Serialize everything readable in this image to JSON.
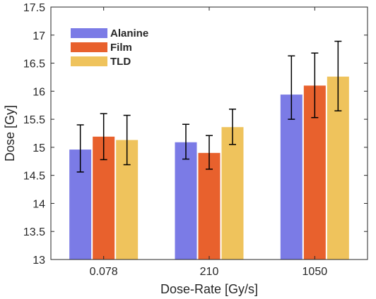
{
  "chart_data": {
    "type": "bar",
    "categories": [
      "0.078",
      "210",
      "1050"
    ],
    "series": [
      {
        "name": "Alanine",
        "color": "#7b7be6",
        "values": [
          14.96,
          15.09,
          15.94
        ],
        "err_low": [
          14.56,
          14.79,
          15.5
        ],
        "err_high": [
          15.4,
          15.41,
          16.63
        ]
      },
      {
        "name": "Film",
        "color": "#e8612d",
        "values": [
          15.19,
          14.9,
          16.1
        ],
        "err_low": [
          14.78,
          14.61,
          15.53
        ],
        "err_high": [
          15.6,
          15.21,
          16.68
        ]
      },
      {
        "name": "TLD",
        "color": "#efc35c",
        "values": [
          15.13,
          15.36,
          16.26
        ],
        "err_low": [
          14.69,
          15.05,
          15.65
        ],
        "err_high": [
          15.57,
          15.68,
          16.89
        ]
      }
    ],
    "xlabel": "Dose-Rate [Gy/s]",
    "ylabel": "Dose [Gy]",
    "ylim": [
      13,
      17.5
    ],
    "yticks": [
      "13",
      "13.5",
      "14",
      "14.5",
      "15",
      "15.5",
      "16",
      "16.5",
      "17",
      "17.5"
    ],
    "grid": false,
    "legend_position": "top-left"
  }
}
